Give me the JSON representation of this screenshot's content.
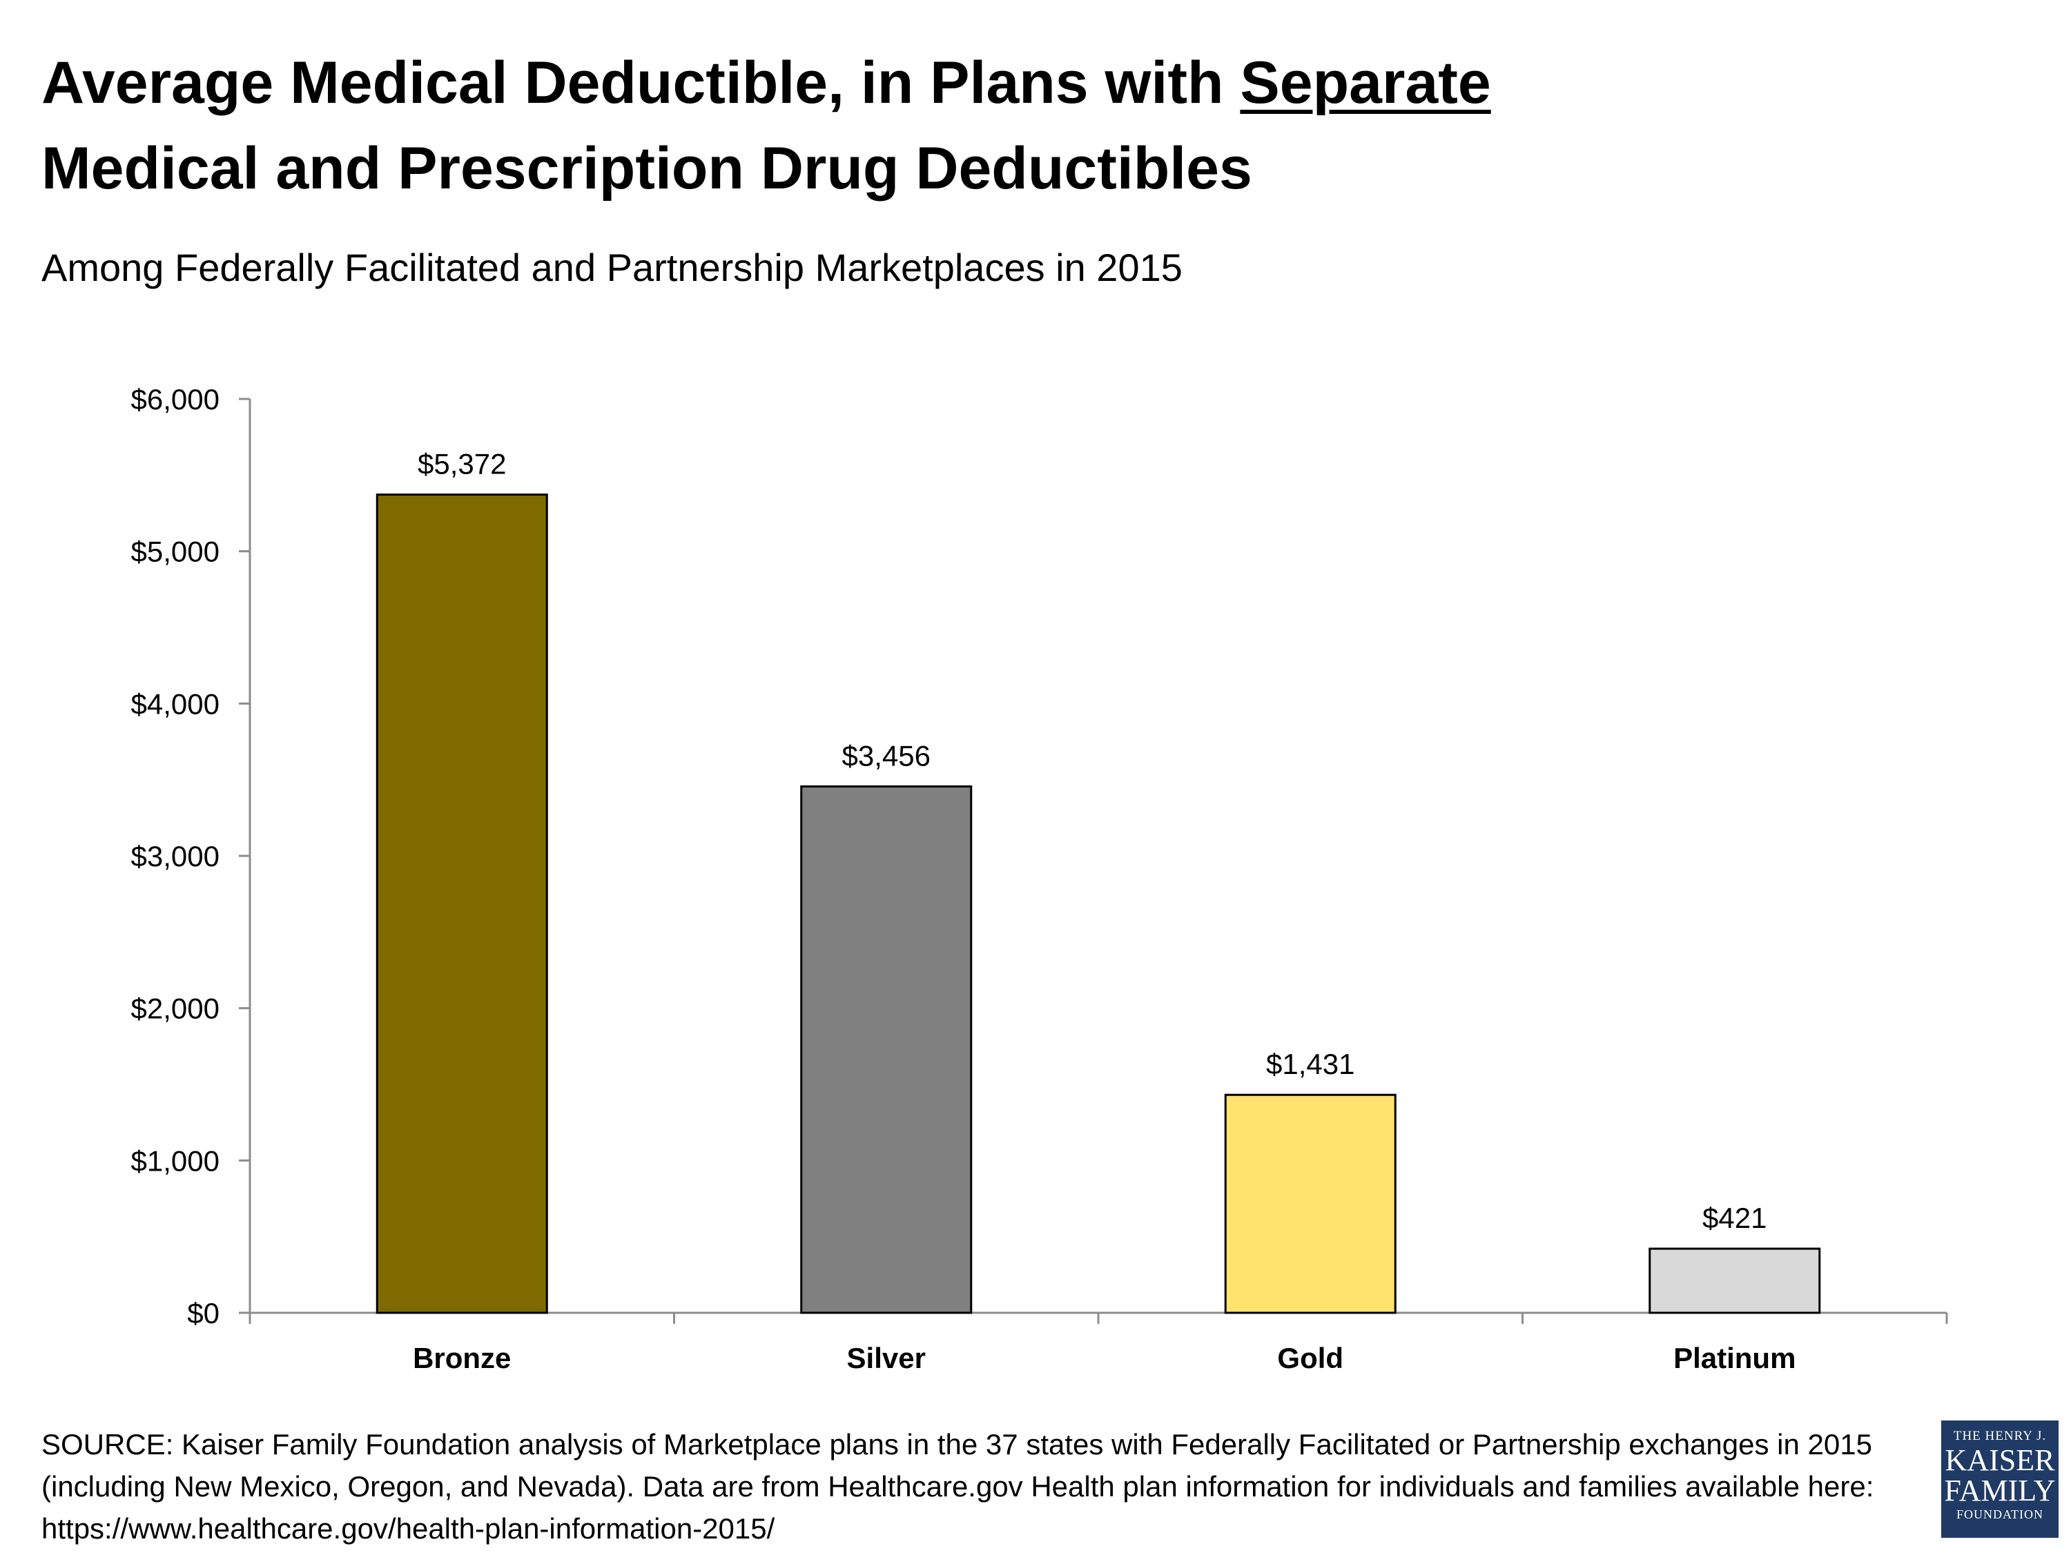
{
  "header": {
    "title_part1": "Average Medical Deductible, in Plans with ",
    "title_underlined": "Separate",
    "title_part2": "Medical and Prescription Drug Deductibles",
    "subtitle": "Among Federally Facilitated and Partnership Marketplaces in 2015"
  },
  "chart_data": {
    "type": "bar",
    "categories": [
      "Bronze",
      "Silver",
      "Gold",
      "Platinum"
    ],
    "values": [
      5372,
      3456,
      1431,
      421
    ],
    "value_labels": [
      "$5,372",
      "$3,456",
      "$1,431",
      "$421"
    ],
    "bar_colors": [
      "#7f6a00",
      "#808080",
      "#ffe36e",
      "#d9d9d9"
    ],
    "ylim": [
      0,
      6000
    ],
    "yticks": [
      0,
      1000,
      2000,
      3000,
      4000,
      5000,
      6000
    ],
    "ytick_labels": [
      "$0",
      "$1,000",
      "$2,000",
      "$3,000",
      "$4,000",
      "$5,000",
      "$6,000"
    ],
    "xlabel": "",
    "ylabel": "",
    "grid": false,
    "legend": "none"
  },
  "footer": {
    "source": "SOURCE: Kaiser Family Foundation analysis of Marketplace plans in the 37 states with Federally Facilitated or Partnership exchanges in 2015 (including New Mexico, Oregon, and Nevada). Data are from Healthcare.gov Health plan information for individuals and families available here: https://www.healthcare.gov/health-plan-information-2015/"
  },
  "logo": {
    "line1": "THE HENRY J.",
    "line2": "KAISER",
    "line3": "FAMILY",
    "line4": "FOUNDATION",
    "color": "#1f3a64"
  }
}
